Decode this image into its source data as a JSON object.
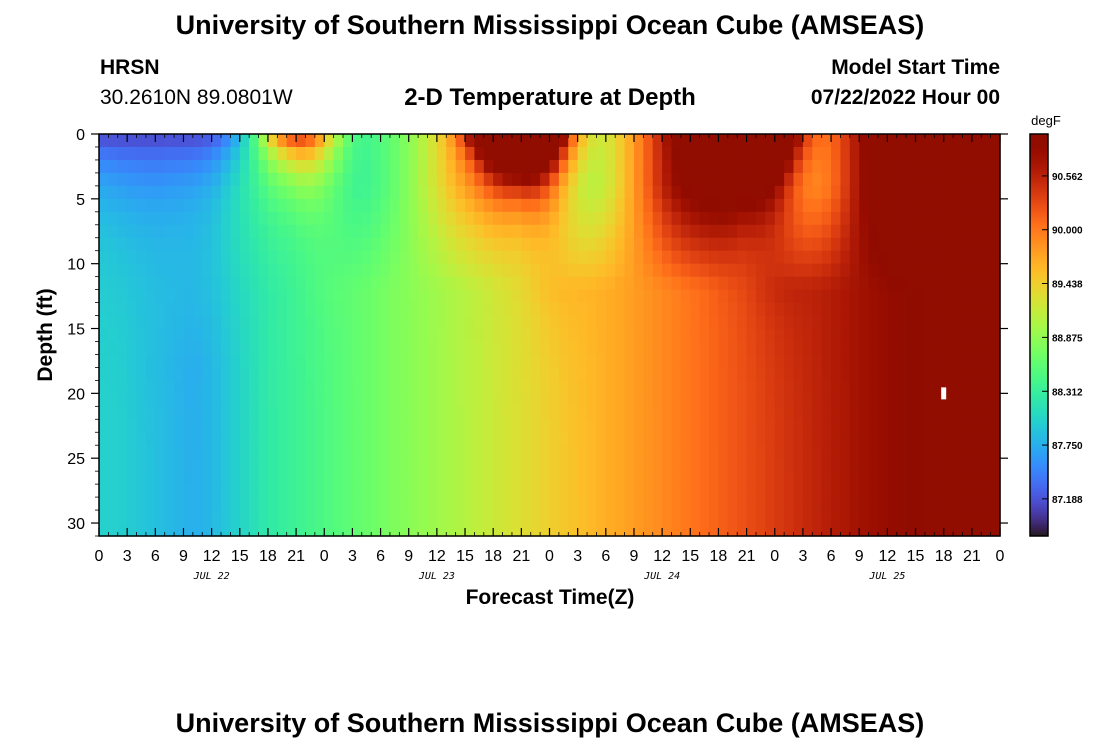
{
  "header": {
    "main_title": "University of Southern Mississippi Ocean Cube (AMSEAS)",
    "station_name": "HRSN",
    "station_coords": "30.2610N  89.0801W",
    "plot_title": "2-D Temperature at Depth",
    "model_start_label": "Model Start Time",
    "model_start_value": "07/22/2022 Hour 00",
    "bottom_title": "University of Southern Mississippi Ocean Cube (AMSEAS)"
  },
  "chart_data": {
    "type": "heatmap",
    "xlabel": "Forecast Time(Z)",
    "ylabel": "Depth (ft)",
    "x_range_hours": [
      0,
      96
    ],
    "ylim": [
      0,
      31
    ],
    "y_inverted": true,
    "x_tick_labels": [
      "0",
      "3",
      "6",
      "9",
      "12",
      "15",
      "18",
      "21",
      "0",
      "3",
      "6",
      "9",
      "12",
      "15",
      "18",
      "21",
      "0",
      "3",
      "6",
      "9",
      "12",
      "15",
      "18",
      "21",
      "0",
      "3",
      "6",
      "9",
      "12",
      "15",
      "18",
      "21",
      "0"
    ],
    "x_tick_step_hours": 3,
    "day_labels": [
      {
        "label": "JUL 22",
        "hour": 12
      },
      {
        "label": "JUL 23",
        "hour": 36
      },
      {
        "label": "JUL 24",
        "hour": 60
      },
      {
        "label": "JUL 25",
        "hour": 84
      }
    ],
    "y_ticks": [
      0,
      5,
      10,
      15,
      20,
      25,
      30
    ],
    "y_tick_labels": [
      "0",
      "5",
      "10",
      "15",
      "20",
      "25",
      "30"
    ],
    "colorbar": {
      "unit": "degF",
      "range": [
        86.8,
        91.0
      ],
      "ticks": [
        87.188,
        87.75,
        88.312,
        88.875,
        89.438,
        90.0,
        90.562
      ],
      "tick_labels": [
        "87.188",
        "87.750",
        "88.312",
        "88.875",
        "89.438",
        "90.000",
        "90.562"
      ],
      "colormap": "turbo"
    },
    "surface_warm_peaks_hours": [
      21,
      45,
      69,
      93
    ],
    "deep_layer_trend": "cool (~88.0 degF) early, warming to ~90.9 degF by end",
    "marker": {
      "hour": 90,
      "depth": 20
    }
  }
}
